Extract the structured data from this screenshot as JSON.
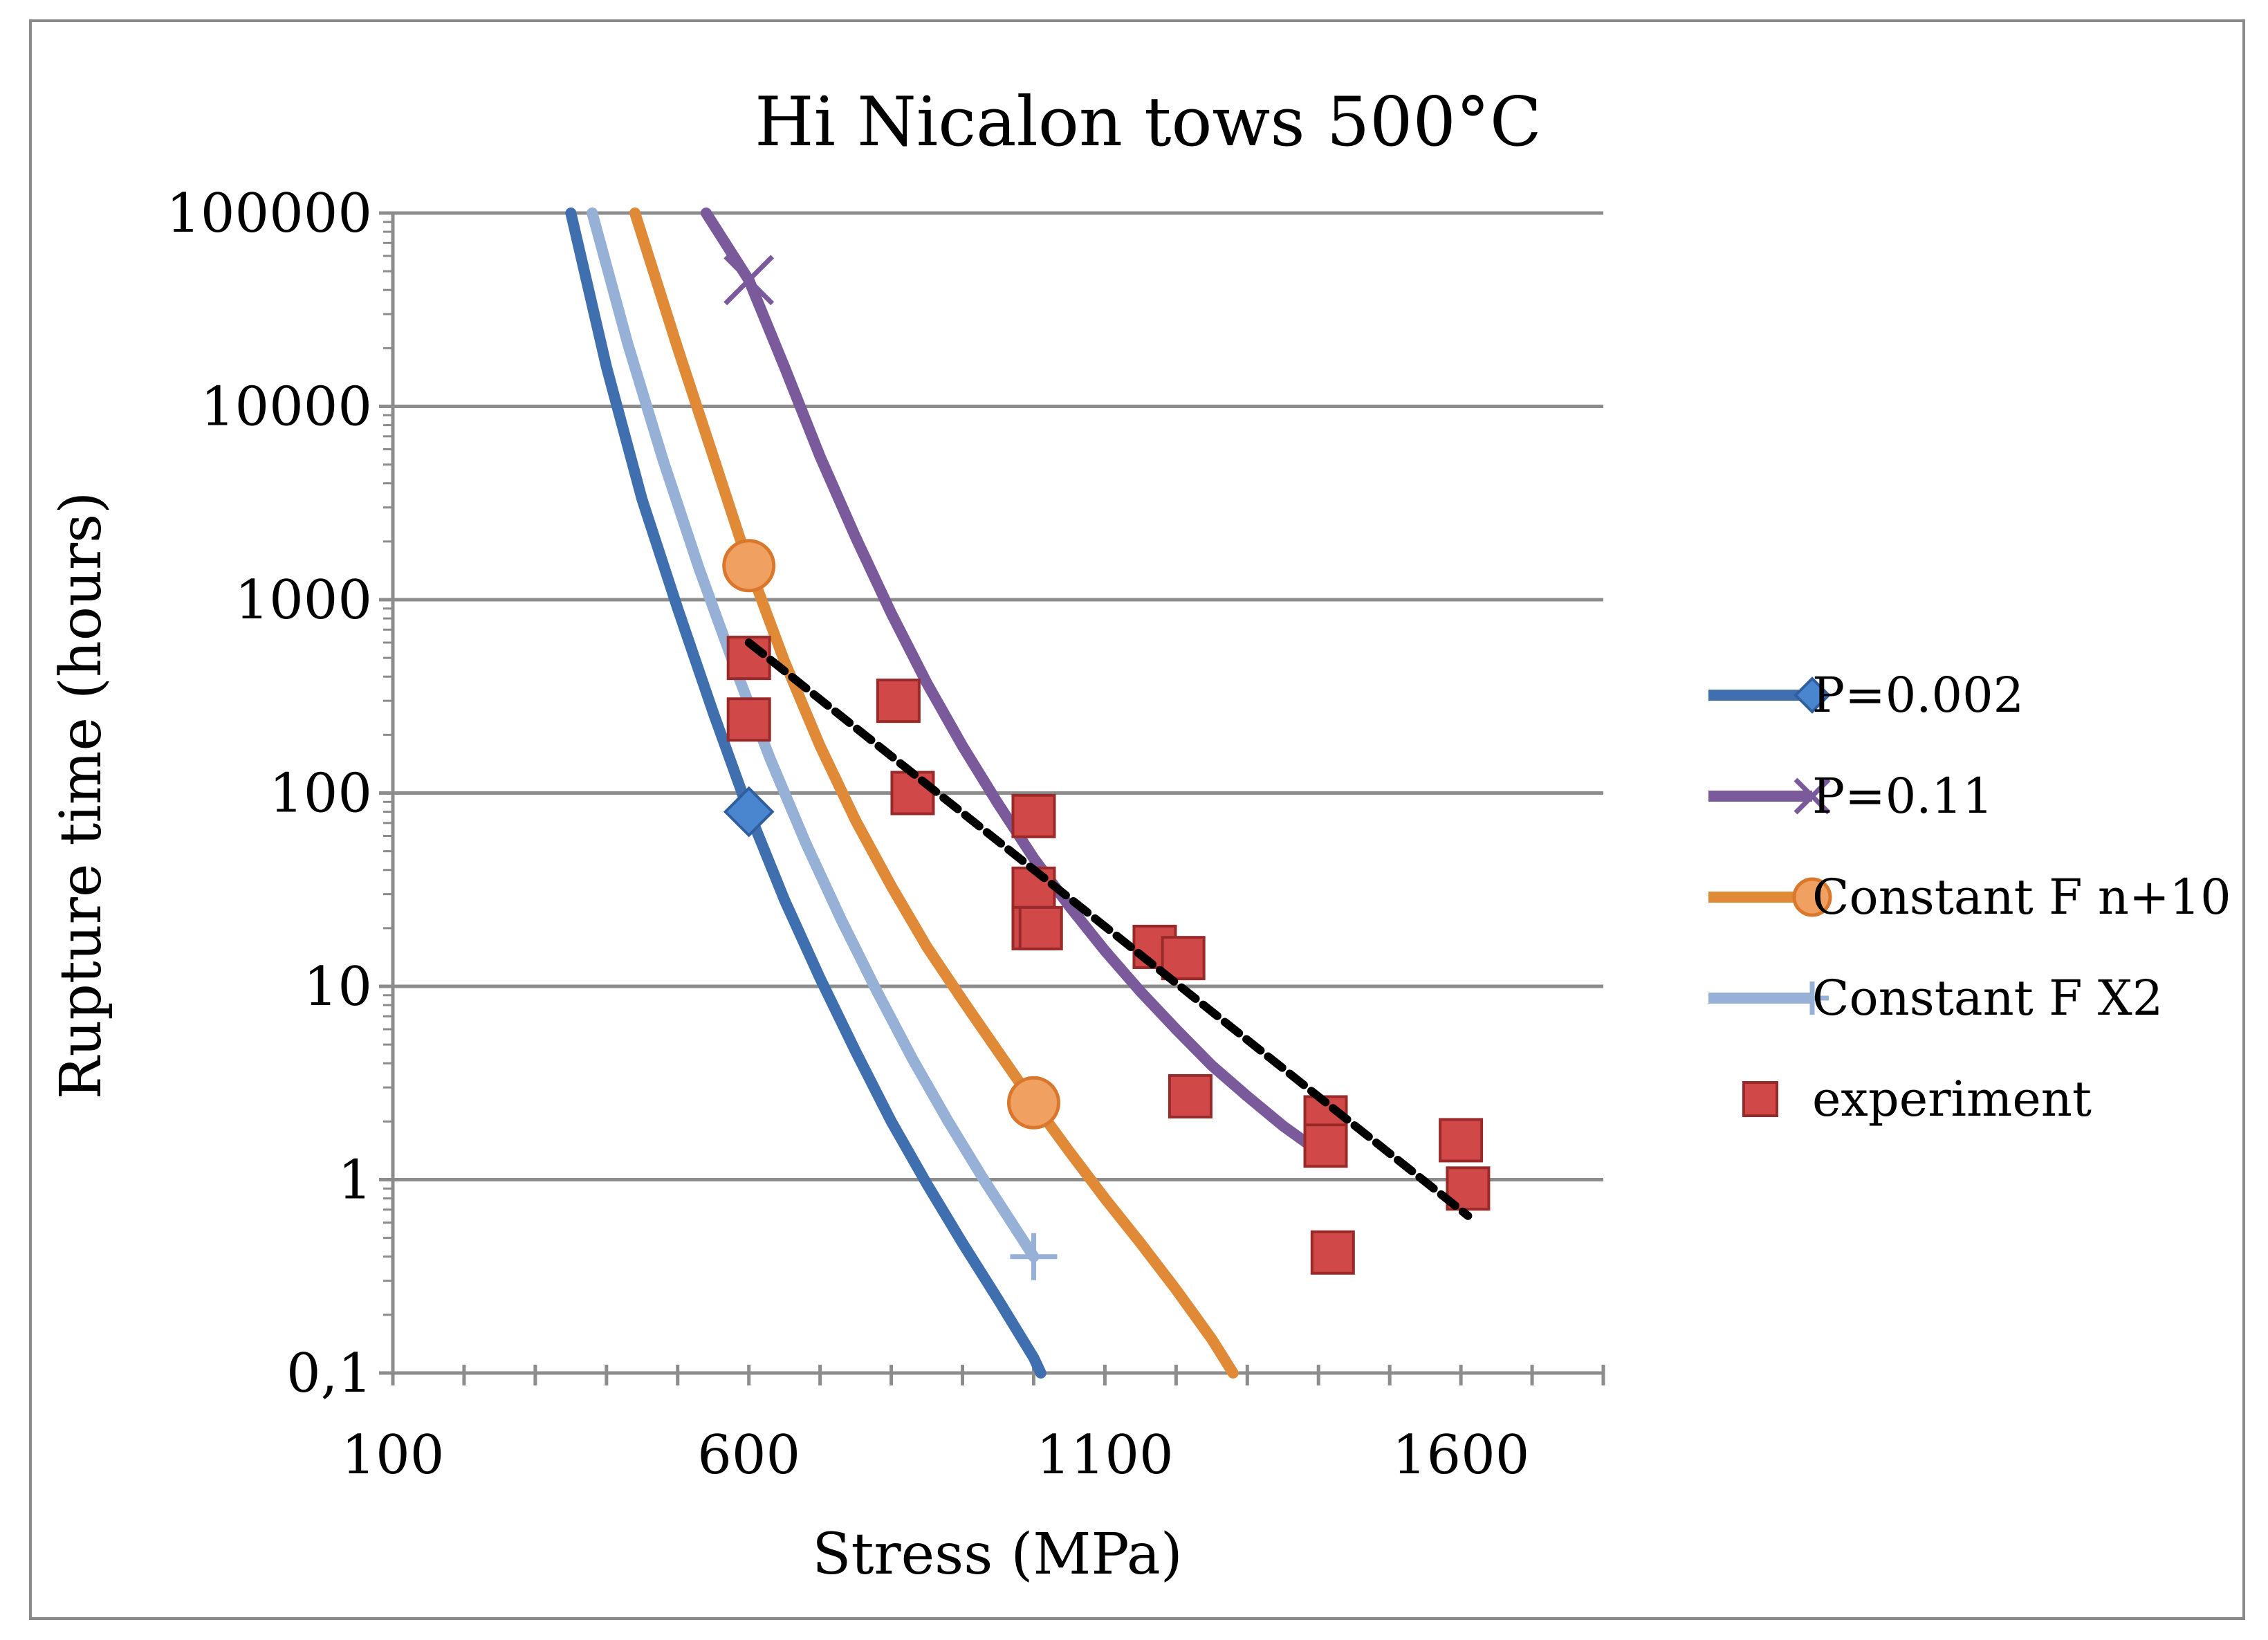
{
  "chart_data": {
    "type": "line",
    "title": "Hi Nicalon tows 500°C",
    "xlabel": "Stress (MPa)",
    "ylabel": "Rupture time (hours)",
    "xlim": [
      100,
      1800
    ],
    "ylim": [
      0.1,
      100000
    ],
    "yscale": "log",
    "x_ticks": [
      100,
      600,
      1100,
      1600
    ],
    "x_tick_labels": [
      "100",
      "600",
      "1100",
      "1600"
    ],
    "y_ticks": [
      0.1,
      1,
      10,
      100,
      1000,
      10000,
      100000
    ],
    "y_tick_labels": [
      "0,1",
      "1",
      "10",
      "100",
      "1000",
      "10000",
      "100000"
    ],
    "grid": "horizontal",
    "legend_position": "right",
    "series": [
      {
        "name": "P=0.002",
        "kind": "curve",
        "color": "#3f6faf",
        "marker": "diamond",
        "x": [
          350,
          400,
          450,
          500,
          550,
          600,
          650,
          700,
          750,
          800,
          850,
          900,
          950,
          1000,
          1010
        ],
        "y": [
          100000,
          16000,
          3300,
          900,
          260,
          80,
          28,
          11,
          4.6,
          2.0,
          0.95,
          0.47,
          0.24,
          0.12,
          0.1
        ],
        "markers_x": [
          600
        ],
        "markers_y": [
          80
        ]
      },
      {
        "name": "P=0.11",
        "kind": "curve",
        "color": "#7b5a9b",
        "marker": "x",
        "x": [
          540,
          600,
          650,
          700,
          750,
          800,
          850,
          900,
          950,
          1000,
          1050,
          1100,
          1150,
          1200,
          1250,
          1300,
          1350,
          1400,
          1420
        ],
        "y": [
          100000,
          45000,
          16000,
          5500,
          2100,
          850,
          370,
          175,
          88,
          46,
          26,
          15.3,
          9.4,
          6.0,
          3.9,
          2.7,
          1.9,
          1.4,
          1.3
        ],
        "markers_x": [
          600
        ],
        "markers_y": [
          45000
        ]
      },
      {
        "name": "Constant F n+10",
        "kind": "curve",
        "color": "#e08a38",
        "marker": "circle",
        "x": [
          440,
          500,
          550,
          600,
          650,
          700,
          750,
          800,
          850,
          900,
          950,
          1000,
          1050,
          1100,
          1150,
          1200,
          1250,
          1280
        ],
        "y": [
          100000,
          20000,
          5500,
          1500,
          480,
          175,
          72,
          33,
          16,
          8.5,
          4.6,
          2.5,
          1.4,
          0.8,
          0.47,
          0.27,
          0.15,
          0.1
        ],
        "markers_x": [
          600,
          1000
        ],
        "markers_y": [
          1500,
          2.5
        ]
      },
      {
        "name": "Constant F X2",
        "kind": "curve",
        "color": "#97b0d6",
        "marker": "plus",
        "x": [
          380,
          430,
          480,
          530,
          580,
          630,
          680,
          730,
          780,
          830,
          880,
          930,
          980,
          1000
        ],
        "y": [
          100000,
          21000,
          5200,
          1450,
          450,
          150,
          55,
          22,
          9.4,
          4.2,
          2.0,
          1.0,
          0.52,
          0.4
        ],
        "markers_x": [
          1000
        ],
        "markers_y": [
          0.4
        ]
      },
      {
        "name": "experiment",
        "kind": "scatter",
        "color": "#c94040",
        "marker": "square",
        "x": [
          600,
          600,
          810,
          830,
          1000,
          1000,
          1000,
          1010,
          1170,
          1210,
          1220,
          1410,
          1410,
          1420,
          1600,
          1610
        ],
        "y": [
          500,
          240,
          300,
          100,
          76,
          32,
          20,
          20,
          16,
          14,
          2.7,
          2.1,
          1.5,
          0.42,
          1.6,
          0.9
        ]
      }
    ],
    "trendline": {
      "style": "dashed",
      "color": "#000000",
      "x": [
        600,
        1610
      ],
      "y": [
        600,
        0.65
      ]
    }
  }
}
